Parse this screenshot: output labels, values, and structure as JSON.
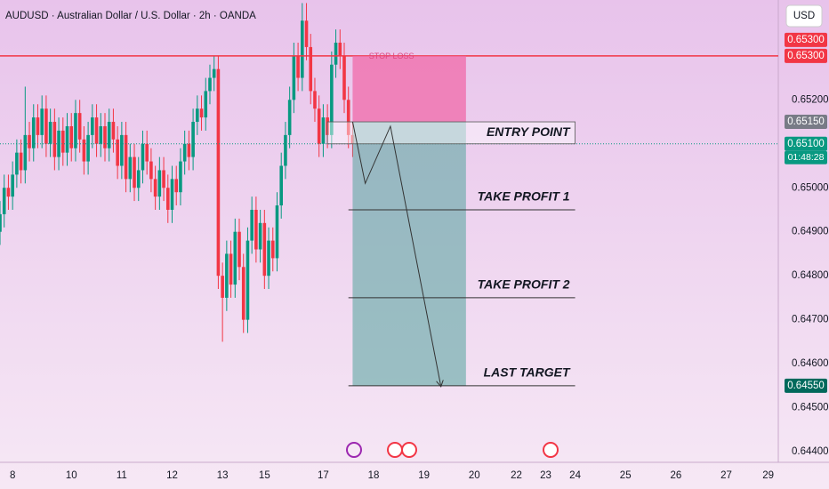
{
  "chart_data": {
    "type": "candlestick",
    "title": "AUDUSD · Australian Dollar / U.S. Dollar · 2h · OANDA",
    "currency": "USD",
    "up_color": "#089981",
    "down_color": "#f23645",
    "xlim": [
      -3,
      182.4
    ],
    "ylim": [
      0.64386,
      0.65427
    ],
    "xticks": [
      {
        "value": 0,
        "label": "8"
      },
      {
        "value": 14,
        "label": "10"
      },
      {
        "value": 26,
        "label": "11"
      },
      {
        "value": 38,
        "label": "12"
      },
      {
        "value": 50,
        "label": "13"
      },
      {
        "value": 60,
        "label": "15"
      },
      {
        "value": 74,
        "label": "17"
      },
      {
        "value": 86,
        "label": "18"
      },
      {
        "value": 98,
        "label": "19"
      },
      {
        "value": 110,
        "label": "20"
      },
      {
        "value": 120,
        "label": "22"
      },
      {
        "value": 127,
        "label": "23"
      },
      {
        "value": 134,
        "label": "24"
      },
      {
        "value": 146,
        "label": "25"
      },
      {
        "value": 158,
        "label": "26"
      },
      {
        "value": 170,
        "label": "27"
      },
      {
        "value": 180,
        "label": "29"
      }
    ],
    "yticks": [
      {
        "value": 0.652,
        "label": "0.65200"
      },
      {
        "value": 0.65,
        "label": "0.65000"
      },
      {
        "value": 0.649,
        "label": "0.64900"
      },
      {
        "value": 0.648,
        "label": "0.64800"
      },
      {
        "value": 0.647,
        "label": "0.64700"
      },
      {
        "value": 0.646,
        "label": "0.64600"
      },
      {
        "value": 0.645,
        "label": "0.64500"
      },
      {
        "value": 0.644,
        "label": "0.64400"
      }
    ],
    "x": [
      -3,
      -2,
      -1,
      0,
      1,
      2,
      3,
      4,
      5,
      6,
      7,
      8,
      9,
      10,
      11,
      12,
      13,
      14,
      15,
      16,
      17,
      18,
      19,
      20,
      21,
      22,
      23,
      24,
      25,
      26,
      27,
      28,
      29,
      30,
      31,
      32,
      33,
      34,
      35,
      36,
      37,
      38,
      39,
      40,
      41,
      42,
      43,
      44,
      45,
      46,
      47,
      48,
      49,
      50,
      51,
      52,
      53,
      54,
      55,
      56,
      57,
      58,
      59,
      60,
      61,
      62,
      63,
      64,
      65,
      66,
      67,
      68,
      69,
      70,
      71,
      72,
      73,
      74,
      75,
      76,
      77,
      78,
      79,
      80,
      81
    ],
    "open": [
      0.649,
      0.6494,
      0.65,
      0.6498,
      0.6503,
      0.6508,
      0.6504,
      0.6512,
      0.6509,
      0.6516,
      0.6512,
      0.6518,
      0.651,
      0.6515,
      0.6507,
      0.6513,
      0.6508,
      0.6514,
      0.6509,
      0.6517,
      0.6511,
      0.6506,
      0.6512,
      0.6516,
      0.651,
      0.6514,
      0.6509,
      0.6515,
      0.6511,
      0.6505,
      0.6512,
      0.6502,
      0.6507,
      0.65,
      0.6504,
      0.651,
      0.6506,
      0.6502,
      0.6498,
      0.6504,
      0.65,
      0.6495,
      0.6502,
      0.6499,
      0.6506,
      0.651,
      0.6507,
      0.6515,
      0.6518,
      0.6516,
      0.6522,
      0.6525,
      0.6527,
      0.648,
      0.6475,
      0.6485,
      0.6478,
      0.649,
      0.6482,
      0.647,
      0.6488,
      0.6495,
      0.6486,
      0.6492,
      0.648,
      0.6488,
      0.6484,
      0.6496,
      0.6505,
      0.6512,
      0.652,
      0.653,
      0.6525,
      0.6538,
      0.6532,
      0.6522,
      0.6518,
      0.651,
      0.6516,
      0.6512,
      0.6528,
      0.6533,
      0.653,
      0.652,
      0.6512
    ],
    "high": [
      0.6497,
      0.6503,
      0.6503,
      0.6506,
      0.6511,
      0.6511,
      0.6523,
      0.6515,
      0.6519,
      0.6519,
      0.6521,
      0.6521,
      0.6518,
      0.6518,
      0.6516,
      0.6516,
      0.6517,
      0.6517,
      0.652,
      0.652,
      0.6514,
      0.6515,
      0.6519,
      0.6519,
      0.6517,
      0.6517,
      0.6518,
      0.6518,
      0.6514,
      0.6515,
      0.6515,
      0.651,
      0.651,
      0.6507,
      0.6513,
      0.6513,
      0.6509,
      0.6505,
      0.6507,
      0.6507,
      0.6503,
      0.6505,
      0.6505,
      0.6509,
      0.6513,
      0.6513,
      0.6518,
      0.6521,
      0.6521,
      0.6525,
      0.6528,
      0.653,
      0.653,
      0.6483,
      0.6488,
      0.6488,
      0.6493,
      0.6493,
      0.6485,
      0.6491,
      0.6498,
      0.6498,
      0.6495,
      0.6495,
      0.6491,
      0.6491,
      0.6499,
      0.6508,
      0.6515,
      0.6523,
      0.6533,
      0.6533,
      0.6542,
      0.6542,
      0.6535,
      0.6525,
      0.6521,
      0.6519,
      0.6519,
      0.6531,
      0.6536,
      0.6536,
      0.6533,
      0.6523,
      0.6515
    ],
    "low": [
      0.6487,
      0.6491,
      0.6495,
      0.6495,
      0.65,
      0.6501,
      0.6501,
      0.6506,
      0.6506,
      0.6509,
      0.6509,
      0.6507,
      0.6507,
      0.6504,
      0.6504,
      0.6505,
      0.6505,
      0.6506,
      0.6506,
      0.6508,
      0.6503,
      0.6503,
      0.6509,
      0.6507,
      0.6507,
      0.6506,
      0.6506,
      0.6508,
      0.6502,
      0.6502,
      0.6499,
      0.6499,
      0.6497,
      0.6497,
      0.6501,
      0.6503,
      0.6499,
      0.6495,
      0.6495,
      0.6497,
      0.6492,
      0.6492,
      0.6496,
      0.6496,
      0.6503,
      0.6504,
      0.6504,
      0.6512,
      0.6513,
      0.6513,
      0.6519,
      0.6522,
      0.6477,
      0.6465,
      0.6472,
      0.6475,
      0.6475,
      0.6479,
      0.6467,
      0.6467,
      0.6485,
      0.6483,
      0.6483,
      0.6477,
      0.6477,
      0.6481,
      0.6481,
      0.6493,
      0.6502,
      0.6509,
      0.6517,
      0.6522,
      0.6522,
      0.6529,
      0.6519,
      0.6515,
      0.6507,
      0.6507,
      0.6509,
      0.6509,
      0.6525,
      0.6527,
      0.6517,
      0.6509,
      0.6507
    ],
    "close": [
      0.6494,
      0.65,
      0.6498,
      0.6503,
      0.6508,
      0.6504,
      0.6512,
      0.6509,
      0.6516,
      0.6512,
      0.6518,
      0.651,
      0.6515,
      0.6507,
      0.6513,
      0.6508,
      0.6514,
      0.6509,
      0.6517,
      0.6511,
      0.6506,
      0.6512,
      0.6516,
      0.651,
      0.6514,
      0.6509,
      0.6515,
      0.6511,
      0.6505,
      0.6512,
      0.6502,
      0.6507,
      0.65,
      0.6504,
      0.651,
      0.6506,
      0.6502,
      0.6498,
      0.6504,
      0.65,
      0.6495,
      0.6502,
      0.6499,
      0.6506,
      0.651,
      0.6507,
      0.6515,
      0.6518,
      0.6516,
      0.6522,
      0.6525,
      0.6527,
      0.648,
      0.6475,
      0.6485,
      0.6478,
      0.649,
      0.6482,
      0.647,
      0.6488,
      0.6495,
      0.6486,
      0.6492,
      0.648,
      0.6488,
      0.6484,
      0.6496,
      0.6505,
      0.6512,
      0.652,
      0.653,
      0.6525,
      0.6538,
      0.6532,
      0.6522,
      0.6518,
      0.651,
      0.6516,
      0.6512,
      0.6528,
      0.6533,
      0.653,
      0.652,
      0.6512,
      0.651
    ],
    "stop_line": {
      "value": 0.653,
      "color": "#f23645"
    },
    "last_price": 0.651,
    "stop_zone": {
      "label": "STOP LOSS",
      "x": [
        81,
        108
      ],
      "y": [
        0.6515,
        0.653
      ],
      "color": "#f06aa8"
    },
    "target_zone": {
      "x": [
        81,
        108
      ],
      "y": [
        0.6455,
        0.6515
      ],
      "color": "#5fa8a4"
    },
    "entry": {
      "label": "ENTRY POINT",
      "x": [
        75,
        134
      ],
      "y": [
        0.651,
        0.6515
      ]
    },
    "levels": [
      {
        "label": "TAKE PROFIT 1",
        "value": 0.6495,
        "x": [
          80,
          134
        ]
      },
      {
        "label": "TAKE PROFIT 2",
        "value": 0.6475,
        "x": [
          80,
          134
        ]
      },
      {
        "label": "LAST TARGET",
        "value": 0.6455,
        "x": [
          80,
          134
        ]
      }
    ],
    "projection": {
      "x": [
        81,
        84,
        90,
        102
      ],
      "y": [
        0.6515,
        0.6501,
        0.6514,
        0.6455
      ]
    },
    "price_tags": [
      {
        "value": 0.653,
        "label": "0.65300",
        "color": "#f23645"
      },
      {
        "value": 0.653,
        "label": "0.65300",
        "color": "#f23645"
      },
      {
        "value": 0.6515,
        "label": "0.65150",
        "color": "#787b86"
      },
      {
        "value": 0.651,
        "label": "0.65100",
        "color": "#089981"
      },
      {
        "value": 0.6455,
        "label": "0.64550",
        "color": "#00695c"
      }
    ],
    "countdown": "01:48:28"
  }
}
